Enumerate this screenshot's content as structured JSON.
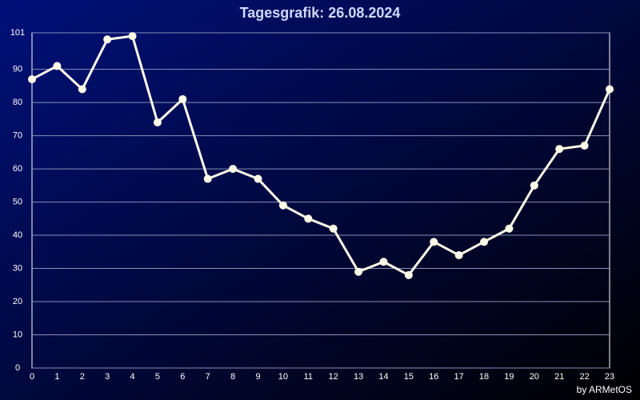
{
  "chart_data": {
    "type": "line",
    "title": "Tagesgrafik: 26.08.2024",
    "footer": "by ARMetOS",
    "x": [
      0,
      1,
      2,
      3,
      4,
      5,
      6,
      7,
      8,
      9,
      10,
      11,
      12,
      13,
      14,
      15,
      16,
      17,
      18,
      19,
      20,
      21,
      22,
      23
    ],
    "series": [
      {
        "color": "#fffbe8",
        "values": [
          87,
          91,
          84,
          99,
          100,
          74,
          81,
          57,
          60,
          57,
          49,
          45,
          42,
          29,
          32,
          28,
          38,
          34,
          38,
          42,
          55,
          66,
          67,
          84
        ]
      }
    ],
    "xlim": [
      0,
      23
    ],
    "xticks": [
      0,
      1,
      2,
      3,
      4,
      5,
      6,
      7,
      8,
      9,
      10,
      11,
      12,
      13,
      14,
      15,
      16,
      17,
      18,
      19,
      20,
      21,
      22,
      23
    ],
    "ylim": [
      0,
      101
    ],
    "yticks": [
      0,
      10,
      20,
      30,
      40,
      50,
      60,
      70,
      80,
      90,
      101
    ],
    "grid": true
  }
}
